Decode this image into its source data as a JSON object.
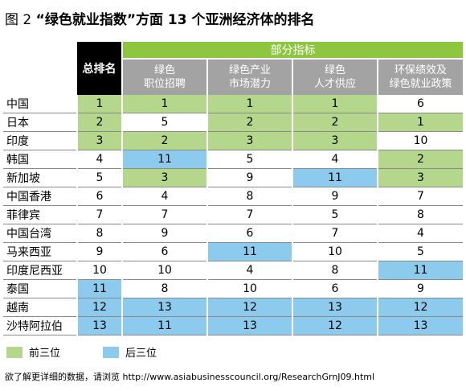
{
  "title_prefix": "图 2",
  "title": "“绿色就业指数”方面 13 个亚洲经济体的排名",
  "table": {
    "total_header": "总排名",
    "group_header": "部分指标",
    "columns": [
      "绿色\n职位招聘",
      "绿色产业\n市场潜力",
      "绿色\n人才供应",
      "环保绩效及\n绿色就业政策"
    ],
    "rows": [
      {
        "name": "中国",
        "values": [
          1,
          1,
          1,
          1,
          6
        ]
      },
      {
        "name": "日本",
        "values": [
          2,
          5,
          2,
          2,
          1
        ]
      },
      {
        "name": "印度",
        "values": [
          3,
          2,
          3,
          3,
          10
        ]
      },
      {
        "name": "韩国",
        "values": [
          4,
          11,
          5,
          4,
          2
        ]
      },
      {
        "name": "新加坡",
        "values": [
          5,
          3,
          9,
          11,
          3
        ]
      },
      {
        "name": "中国香港",
        "values": [
          6,
          4,
          8,
          9,
          7
        ]
      },
      {
        "name": "菲律宾",
        "values": [
          7,
          7,
          7,
          5,
          8
        ]
      },
      {
        "name": "中国台湾",
        "values": [
          8,
          9,
          6,
          7,
          4
        ]
      },
      {
        "name": "马来西亚",
        "values": [
          9,
          6,
          11,
          10,
          5
        ]
      },
      {
        "name": "印度尼西亚",
        "values": [
          10,
          10,
          4,
          8,
          11
        ]
      },
      {
        "name": "泰国",
        "values": [
          11,
          8,
          10,
          6,
          9
        ]
      },
      {
        "name": "越南",
        "values": [
          12,
          13,
          12,
          13,
          12
        ]
      },
      {
        "name": "沙特阿拉伯",
        "values": [
          13,
          11,
          13,
          12,
          13
        ]
      }
    ]
  },
  "legend": [
    {
      "label": "前三位",
      "color": "#b4d78c"
    },
    {
      "label": "后三位",
      "color": "#8ccbed"
    }
  ],
  "footnote": "欲了解更详细的数据，请浏览 http://www.asiabusinesscouncil.org/ResearchGrnJ09.html"
}
